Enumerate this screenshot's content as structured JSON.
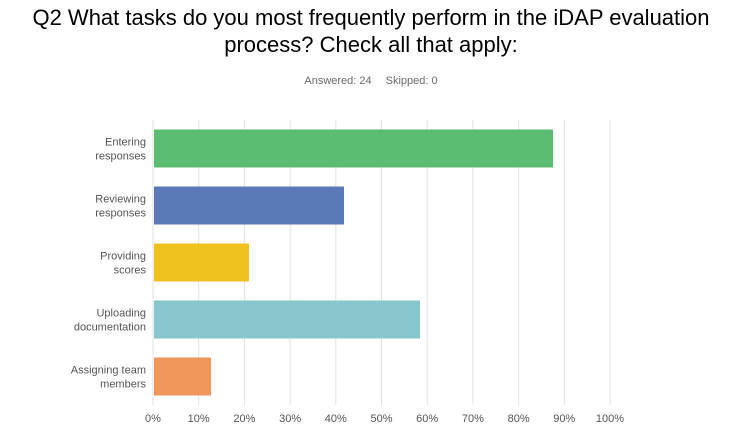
{
  "header": {
    "title_line1": "Q2 What tasks do you most frequently perform in the iDAP evaluation",
    "title_line2": "process? Check all that apply:",
    "answered": "Answered: 24",
    "skipped": "Skipped: 0"
  },
  "chart_data": {
    "type": "bar",
    "orientation": "horizontal",
    "title": "Q2 What tasks do you most frequently perform in the iDAP evaluation process? Check all that apply:",
    "categories": [
      [
        "Entering",
        "responses"
      ],
      [
        "Reviewing",
        "responses"
      ],
      [
        "Providing",
        "scores"
      ],
      [
        "Uploading",
        "documentation"
      ],
      [
        "Assigning team",
        "members"
      ]
    ],
    "values": [
      87.5,
      41.67,
      20.83,
      58.33,
      12.5
    ],
    "colors": [
      "#5bbd72",
      "#5b78b7",
      "#f0c21d",
      "#86c6cc",
      "#f0965a"
    ],
    "xlim": [
      0,
      100
    ],
    "xticks": [
      "0%",
      "10%",
      "20%",
      "30%",
      "40%",
      "50%",
      "60%",
      "70%",
      "80%",
      "90%",
      "100%"
    ],
    "grid": "vertical",
    "legend": "none"
  }
}
